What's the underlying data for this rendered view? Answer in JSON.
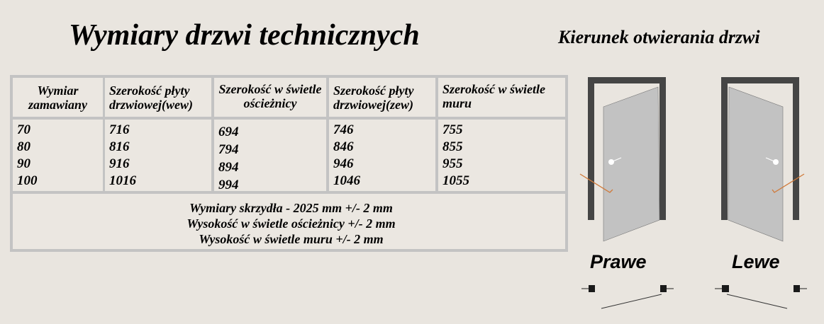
{
  "title": "Wymiary drzwi technicznych",
  "subtitle": "Kierunek otwierania drzwi",
  "table": {
    "headers": [
      "Wymiar zamawiany",
      "Szerokość płyty drzwiowej(wew)",
      "Szerokość w świetle ościeżnicy",
      "Szerokość płyty drzwiowej(zew)",
      "Szerokość w świetle muru"
    ],
    "columns": [
      [
        "70",
        "80",
        "90",
        "100"
      ],
      [
        "716",
        "816",
        "916",
        "1016"
      ],
      [
        "694",
        "794",
        "894",
        "994"
      ],
      [
        "746",
        "846",
        "946",
        "1046"
      ],
      [
        "755",
        "855",
        "955",
        "1055"
      ]
    ],
    "notes": [
      "Wymiary skrzydła - 2025 mm +/- 2 mm",
      "Wysokość w świetle ościeżnicy +/- 2 mm",
      "Wysokość w świetle muru +/- 2 mm"
    ]
  },
  "doors": {
    "right_label": "Prawe",
    "left_label": "Lewe"
  },
  "colors": {
    "frame": "#454545",
    "panel": "#c2c2c2",
    "arrow": "#d07a3a"
  }
}
